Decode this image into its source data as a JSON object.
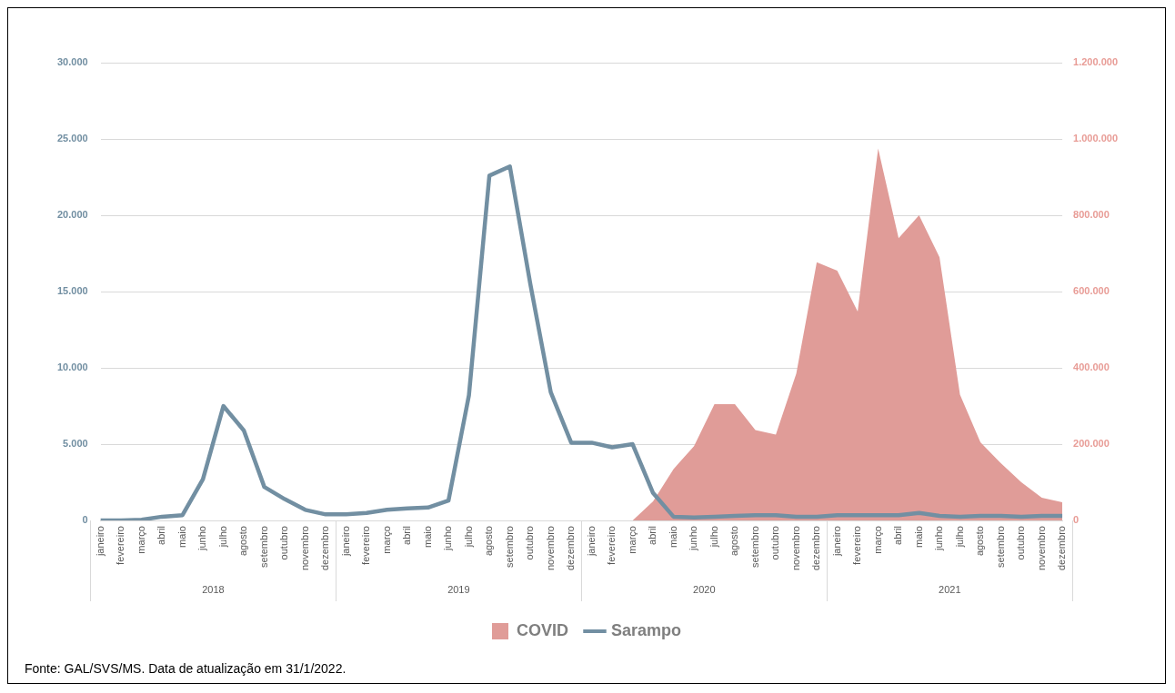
{
  "chart_data": {
    "type": "line",
    "categories": [
      "janeiro",
      "fevereiro",
      "março",
      "abril",
      "maio",
      "junho",
      "julho",
      "agosto",
      "setembro",
      "outubro",
      "novembro",
      "dezembro",
      "janeiro",
      "fevereiro",
      "março",
      "abril",
      "maio",
      "junho",
      "julho",
      "agosto",
      "setembro",
      "outubro",
      "novembro",
      "dezembro",
      "janeiro",
      "fevereiro",
      "março",
      "abril",
      "maio",
      "junho",
      "julho",
      "agosto",
      "setembro",
      "outubro",
      "novembro",
      "dezembro",
      "janeiro",
      "fevereiro",
      "março",
      "abril",
      "maio",
      "junho",
      "julho",
      "agosto",
      "setembro",
      "outubro",
      "novembro",
      "dezembro"
    ],
    "series": [
      {
        "name": "COVID",
        "type": "area",
        "axis": "y2",
        "color": "#e09c98",
        "values": [
          null,
          null,
          null,
          null,
          null,
          null,
          null,
          null,
          null,
          null,
          null,
          null,
          null,
          null,
          null,
          null,
          null,
          null,
          null,
          null,
          null,
          null,
          null,
          null,
          null,
          null,
          0,
          50000,
          135000,
          195000,
          305000,
          305000,
          237000,
          225000,
          385000,
          677000,
          655000,
          548000,
          975000,
          740000,
          800000,
          690000,
          330000,
          205000,
          150000,
          100000,
          60000,
          48000
        ]
      },
      {
        "name": "Sarampo",
        "color": "#728fa2",
        "values": [
          0,
          0,
          50,
          250,
          350,
          2700,
          7500,
          5900,
          2200,
          1400,
          700,
          400,
          400,
          500,
          700,
          800,
          850,
          1300,
          8200,
          22600,
          23200,
          15500,
          8400,
          5100,
          5100,
          4800,
          5000,
          1800,
          250,
          200,
          250,
          300,
          350,
          350,
          250,
          250,
          350,
          350,
          350,
          350,
          500,
          300,
          250,
          300,
          300,
          250,
          300,
          300
        ]
      }
    ],
    "ylim": [
      0,
      30000
    ],
    "yticks": [
      {
        "value": 0,
        "label": "0"
      },
      {
        "value": 5000,
        "label": "5.000"
      },
      {
        "value": 10000,
        "label": "10.000"
      },
      {
        "value": 15000,
        "label": "15.000"
      },
      {
        "value": 20000,
        "label": "20.000"
      },
      {
        "value": 25000,
        "label": "25.000"
      },
      {
        "value": 30000,
        "label": "30.000"
      }
    ],
    "y2lim": [
      0,
      1200000
    ],
    "y2ticks": [
      {
        "value": 0,
        "label": "0"
      },
      {
        "value": 200000,
        "label": "200.000"
      },
      {
        "value": 400000,
        "label": "400.000"
      },
      {
        "value": 600000,
        "label": "600.000"
      },
      {
        "value": 800000,
        "label": "800.000"
      },
      {
        "value": 1000000,
        "label": "1.000.000"
      },
      {
        "value": 1200000,
        "label": "1.200.000"
      }
    ],
    "grid": "y",
    "legend": "bottom",
    "annotations": [
      "2018",
      "2019",
      "2020",
      "2021",
      "Fonte: GAL/SVS/MS. Data de atualização em 31/1/2022."
    ]
  }
}
